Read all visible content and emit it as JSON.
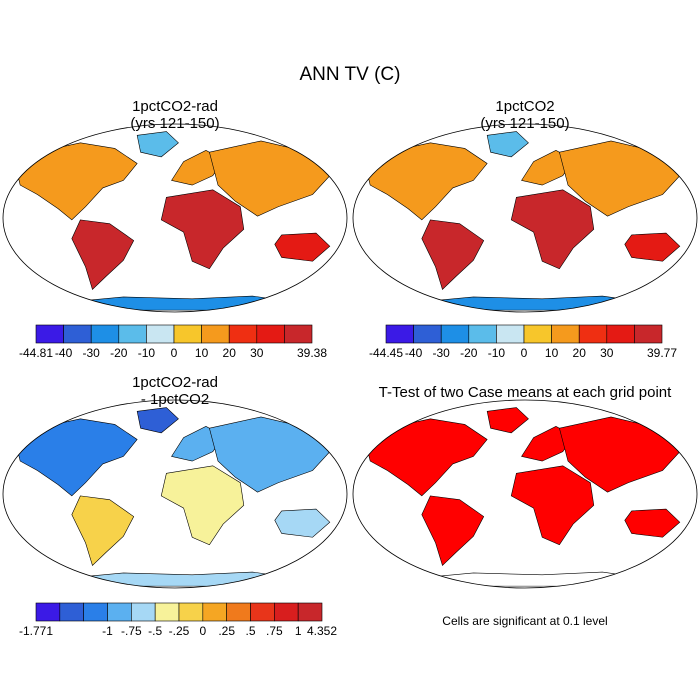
{
  "figure": {
    "title": "ANN TV (C)",
    "note": "Cells are significant at 0.1 level"
  },
  "chart_data": [
    {
      "type": "map",
      "panel": "top-left",
      "title_lines": [
        "1pctCO2-rad",
        "(yrs 121-150)"
      ],
      "colorbar": {
        "colors": [
          "#3b1ae6",
          "#2e5fd6",
          "#1e8fe6",
          "#5bbcea",
          "#c9e6f2",
          "#f7c62b",
          "#f59a1d",
          "#ef2f12",
          "#e41a14",
          "#c8272b"
        ],
        "tick_labels": [
          "-44.81",
          "-40",
          "-30",
          "-20",
          "-10",
          "0",
          "10",
          "20",
          "30",
          "39.38"
        ],
        "min": -44.81,
        "max": 39.38
      }
    },
    {
      "type": "map",
      "panel": "top-right",
      "title_lines": [
        "1pctCO2",
        "(yrs 121-150)"
      ],
      "colorbar": {
        "colors": [
          "#3b1ae6",
          "#2e5fd6",
          "#1e8fe6",
          "#5bbcea",
          "#c9e6f2",
          "#f7c62b",
          "#f59a1d",
          "#ef2f12",
          "#e41a14",
          "#c8272b"
        ],
        "tick_labels": [
          "-44.45",
          "-40",
          "-30",
          "-20",
          "-10",
          "0",
          "10",
          "20",
          "30",
          "39.77"
        ],
        "min": -44.45,
        "max": 39.77
      }
    },
    {
      "type": "map",
      "panel": "bottom-left",
      "title_lines": [
        "1pctCO2-rad",
        "- 1pctCO2"
      ],
      "colorbar": {
        "colors": [
          "#3b1ae6",
          "#2e5fd6",
          "#2a7fe8",
          "#5bb0f0",
          "#a6d8f5",
          "#f7f29a",
          "#f7d24a",
          "#f5a623",
          "#f07a1c",
          "#e8351a",
          "#d81e1e",
          "#c8272b"
        ],
        "tick_labels": [
          "-1.771",
          "-1",
          "-.75",
          "-.5",
          "-.25",
          "0",
          ".25",
          ".5",
          ".75",
          "1",
          "4.352"
        ],
        "min": -1.771,
        "max": 4.352
      }
    },
    {
      "type": "map",
      "panel": "bottom-right",
      "title_lines": [
        "T-Test of two Case means at each grid point"
      ],
      "significant_color": "#ff0000"
    }
  ]
}
